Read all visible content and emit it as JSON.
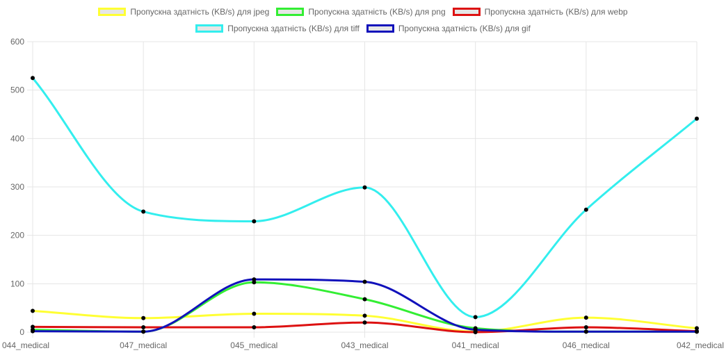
{
  "chart_data": {
    "type": "line",
    "title": "",
    "xlabel": "",
    "ylabel": "",
    "categories": [
      "044_medical",
      "047_medical",
      "045_medical",
      "043_medical",
      "041_medical",
      "046_medical",
      "042_medical"
    ],
    "ylim": [
      0,
      600
    ],
    "yticks": [
      0,
      100,
      200,
      300,
      400,
      500,
      600
    ],
    "grid": true,
    "legend_position": "top",
    "series": [
      {
        "name": "Пропускна здатність (KB/s) для jpeg",
        "color": "#ffff33",
        "values": [
          44,
          29,
          38,
          34,
          1,
          30,
          8
        ]
      },
      {
        "name": "Пропускна здатність (KB/s) для png",
        "color": "#33ee33",
        "values": [
          5,
          1,
          103,
          68,
          8,
          1,
          1
        ]
      },
      {
        "name": "Пропускна здатність (KB/s) для webp",
        "color": "#dd1111",
        "values": [
          11,
          10,
          10,
          20,
          0,
          10,
          2
        ]
      },
      {
        "name": "Пропускна здатність (KB/s) для tiff",
        "color": "#33eeee",
        "values": [
          525,
          249,
          229,
          299,
          31,
          253,
          441
        ]
      },
      {
        "name": "Пропускна здатність (KB/s) для gif",
        "color": "#1111bb",
        "values": [
          2,
          1,
          109,
          104,
          5,
          1,
          1
        ]
      }
    ]
  }
}
